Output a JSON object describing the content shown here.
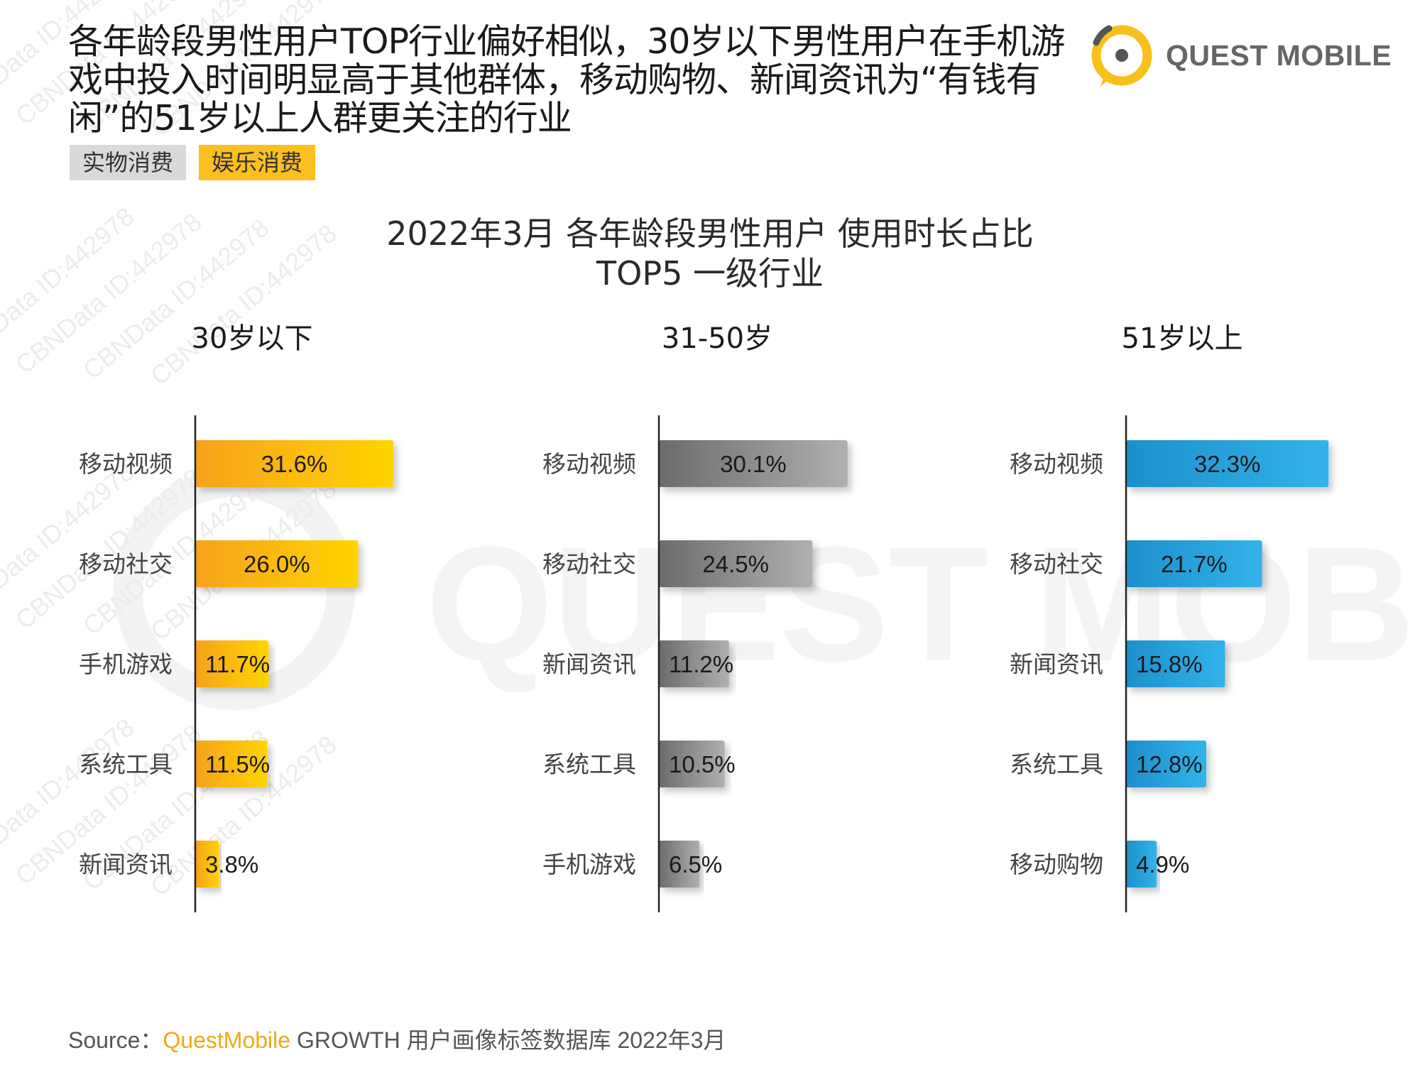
{
  "headline": "各年龄段男性用户TOP行业偏好相似，30岁以下男性用户在手机游戏中投入时间明显高于其他群体，移动购物、新闻资讯为“有钱有闲”的51岁以上人群更关注的行业",
  "tags": [
    "实物消费",
    "娱乐消费"
  ],
  "logo": {
    "text": "QUEST MOBILE",
    "icon": "quest-mobile-logo-icon"
  },
  "source": {
    "prefix": "Source：",
    "brand": "QuestMobile",
    "rest": " GROWTH 用户画像标签数据库 2022年3月"
  },
  "watermark": {
    "id_text": "CBNData ID:442978",
    "logo_text": "QUEST MOBILE"
  },
  "chart_data": {
    "type": "bar",
    "orientation": "horizontal",
    "title": [
      "2022年3月 各年龄段男性用户 使用时长占比",
      "TOP5 一级行业"
    ],
    "value_unit": "%",
    "panels": [
      {
        "name": "30岁以下",
        "color_start": "#f7a21c",
        "color_end": "#ffd400",
        "categories": [
          "移动视频",
          "移动社交",
          "手机游戏",
          "系统工具",
          "新闻资讯"
        ],
        "values": [
          31.6,
          26.0,
          11.7,
          11.5,
          3.8
        ],
        "labels": [
          "31.6%",
          "26.0%",
          "11.7%",
          "11.5%",
          "3.8%"
        ]
      },
      {
        "name": "31-50岁",
        "color_start": "#6b6b6b",
        "color_end": "#b0b0b0",
        "categories": [
          "移动视频",
          "移动社交",
          "新闻资讯",
          "系统工具",
          "手机游戏"
        ],
        "values": [
          30.1,
          24.5,
          11.2,
          10.5,
          6.5
        ],
        "labels": [
          "30.1%",
          "24.5%",
          "11.2%",
          "10.5%",
          "6.5%"
        ]
      },
      {
        "name": "51岁以上",
        "color_start": "#1e8fcc",
        "color_end": "#32b3ea",
        "categories": [
          "移动视频",
          "移动社交",
          "新闻资讯",
          "系统工具",
          "移动购物"
        ],
        "values": [
          32.3,
          21.7,
          15.8,
          12.8,
          4.9
        ],
        "labels": [
          "32.3%",
          "21.7%",
          "15.8%",
          "12.8%",
          "4.9%"
        ]
      }
    ]
  }
}
